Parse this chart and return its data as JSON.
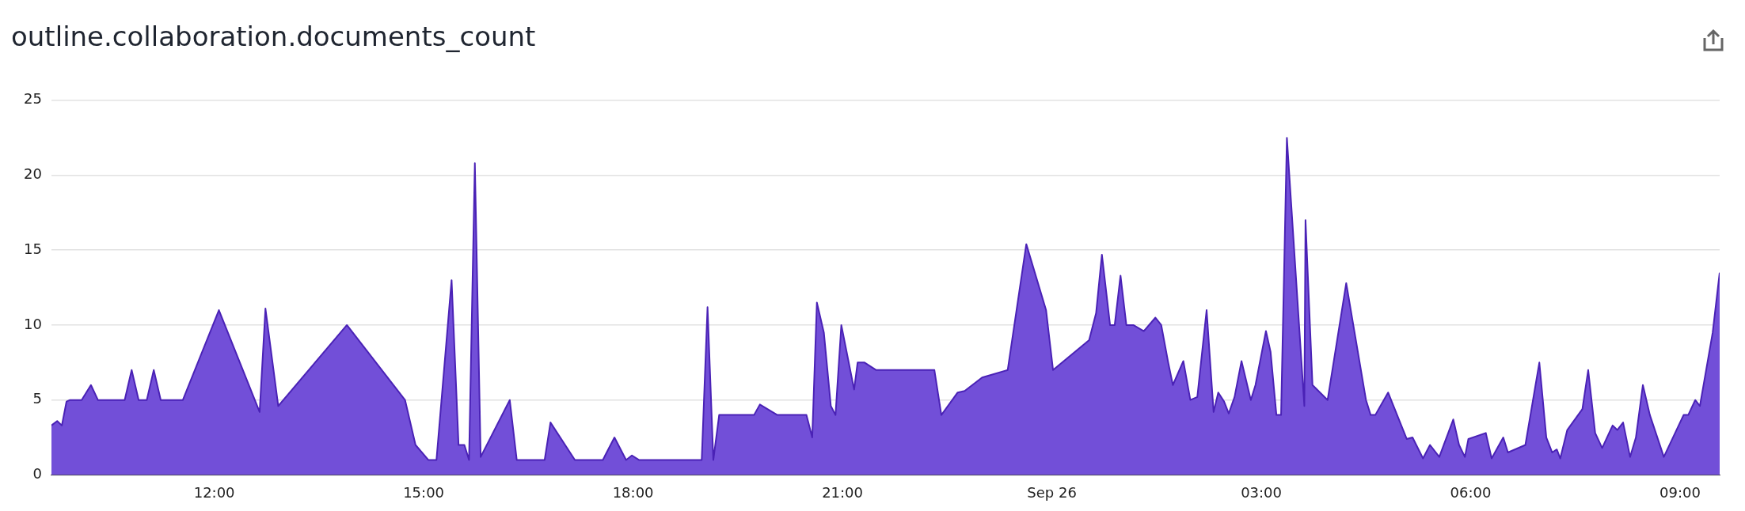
{
  "chart_data": {
    "type": "area",
    "title": "outline.collaboration.documents_count",
    "x": [
      "--09-25T09:40",
      "--09-25T09:45",
      "--09-25T09:49",
      "--09-25T09:53",
      "--09-25T09:56",
      "--09-25T10:06",
      "--09-25T10:14",
      "--09-25T10:20",
      "--09-25T10:43",
      "--09-25T10:49",
      "--09-25T10:55",
      "--09-25T11:02",
      "--09-25T11:08",
      "--09-25T11:14",
      "--09-25T11:33",
      "--09-25T12:04",
      "--09-25T12:39",
      "--09-25T12:44",
      "--09-25T12:55",
      "--09-25T13:54",
      "--09-25T14:44",
      "--09-25T14:53",
      "--09-25T15:04",
      "--09-25T15:11",
      "--09-25T15:24",
      "--09-25T15:30",
      "--09-25T15:35",
      "--09-25T15:39",
      "--09-25T15:44",
      "--09-25T15:49",
      "--09-25T16:14",
      "--09-25T16:20",
      "--09-25T16:44",
      "--09-25T16:49",
      "--09-25T17:10",
      "--09-25T17:34",
      "--09-25T17:44",
      "--09-25T17:54",
      "--09-25T17:59",
      "--09-25T18:05",
      "--09-25T18:59",
      "--09-25T19:04",
      "--09-25T19:09",
      "--09-25T19:14",
      "--09-25T19:44",
      "--09-25T19:49",
      "--09-25T20:04",
      "--09-25T20:29",
      "--09-25T20:34",
      "--09-25T20:38",
      "--09-25T20:44",
      "--09-25T20:50",
      "--09-25T20:54",
      "--09-25T20:59",
      "--09-25T21:10",
      "--09-25T21:13",
      "--09-25T21:19",
      "--09-25T21:29",
      "--09-25T22:19",
      "--09-25T22:25",
      "--09-25T22:39",
      "--09-25T22:45",
      "--09-25T23:00",
      "--09-25T23:22",
      "--09-25T23:38",
      "--09-25T23:55",
      "--09-26T00:01",
      "--09-26T00:32",
      "--09-26T00:38",
      "--09-26T00:43",
      "--09-26T00:50",
      "--09-26T00:54",
      "--09-26T00:59",
      "--09-26T01:04",
      "--09-26T01:10",
      "--09-26T01:19",
      "--09-26T01:29",
      "--09-26T01:34",
      "--09-26T01:40",
      "--09-26T01:44",
      "--09-26T01:53",
      "--09-26T01:59",
      "--09-26T02:05",
      "--09-26T02:13",
      "--09-26T02:19",
      "--09-26T02:23",
      "--09-26T02:28",
      "--09-26T02:32",
      "--09-26T02:37",
      "--09-26T02:43",
      "--09-26T02:51",
      "--09-26T02:55",
      "--09-26T03:04",
      "--09-26T03:08",
      "--09-26T03:13",
      "--09-26T03:17",
      "--09-26T03:22",
      "--09-26T03:37",
      "--09-26T03:38",
      "--09-26T03:44",
      "--09-26T03:57",
      "--09-26T04:13",
      "--09-26T04:30",
      "--09-26T04:34",
      "--09-26T04:38",
      "--09-26T04:49",
      "--09-26T05:05",
      "--09-26T05:10",
      "--09-26T05:19",
      "--09-26T05:25",
      "--09-26T05:33",
      "--09-26T05:45",
      "--09-26T05:50",
      "--09-26T05:55",
      "--09-26T05:58",
      "--09-26T06:13",
      "--09-26T06:18",
      "--09-26T06:28",
      "--09-26T06:32",
      "--09-26T06:47",
      "--09-26T06:59",
      "--09-26T07:05",
      "--09-26T07:10",
      "--09-26T07:14",
      "--09-26T07:17",
      "--09-26T07:23",
      "--09-26T07:36",
      "--09-26T07:41",
      "--09-26T07:47",
      "--09-26T07:53",
      "--09-26T08:02",
      "--09-26T08:06",
      "--09-26T08:11",
      "--09-26T08:17",
      "--09-26T08:22",
      "--09-26T08:28",
      "--09-26T08:34",
      "--09-26T08:46",
      "--09-26T09:03",
      "--09-26T09:07",
      "--09-26T09:13",
      "--09-26T09:17",
      "--09-26T09:28",
      "--09-26T09:34"
    ],
    "series": [
      {
        "color": "#724fd8",
        "values": [
          3.3,
          3.6,
          3.3,
          4.9,
          5,
          5,
          6,
          5,
          5,
          7,
          5,
          5,
          7,
          5,
          5,
          11,
          4.2,
          11.1,
          4.6,
          10,
          5,
          2,
          1,
          1,
          13,
          2,
          2,
          1,
          20.8,
          1.2,
          5,
          1,
          1,
          3.5,
          1,
          1,
          2.5,
          1,
          1.3,
          1,
          1,
          11.2,
          1,
          4,
          4,
          4.7,
          4,
          4,
          2.5,
          11.5,
          9.5,
          4.6,
          4,
          10,
          5.7,
          7.5,
          7.5,
          7,
          7,
          4,
          5.5,
          5.6,
          6.5,
          7,
          15.4,
          11,
          7,
          9,
          10.8,
          14.7,
          10,
          10,
          13.3,
          10,
          10,
          9.6,
          10.5,
          10,
          7.5,
          6,
          7.6,
          5,
          5.2,
          11,
          4.2,
          5.5,
          4.9,
          4.1,
          5.2,
          7.6,
          5,
          6,
          9.6,
          8.2,
          4,
          4,
          22.5,
          4.6,
          17,
          6,
          5,
          12.8,
          5,
          4,
          4,
          5.5,
          2.4,
          2.5,
          1.1,
          2,
          1.2,
          3.7,
          2,
          1.2,
          2.4,
          2.8,
          1.1,
          2.5,
          1.5,
          2,
          7.5,
          2.5,
          1.5,
          1.7,
          1.1,
          3,
          4.4,
          7,
          2.8,
          1.8,
          3.3,
          3,
          3.5,
          1.2,
          2.5,
          6,
          4,
          1.2,
          4,
          4,
          5,
          4.6,
          9.5,
          13.5
        ]
      }
    ],
    "xlim": [
      "--09-25T09:40",
      "--09-26T09:34"
    ],
    "xticks": [
      {
        "value": "--09-25T12:00",
        "label": "12:00"
      },
      {
        "value": "--09-25T15:00",
        "label": "15:00"
      },
      {
        "value": "--09-25T18:00",
        "label": "18:00"
      },
      {
        "value": "--09-25T21:00",
        "label": "21:00"
      },
      {
        "value": "--09-26T00:00",
        "label": "Sep 26"
      },
      {
        "value": "--09-26T03:00",
        "label": "03:00"
      },
      {
        "value": "--09-26T06:00",
        "label": "06:00"
      },
      {
        "value": "--09-26T09:00",
        "label": "09:00"
      }
    ],
    "ylim": [
      0,
      25
    ],
    "yticks": [
      0,
      5,
      10,
      15,
      20,
      25
    ],
    "grid": "y",
    "legend": false
  }
}
